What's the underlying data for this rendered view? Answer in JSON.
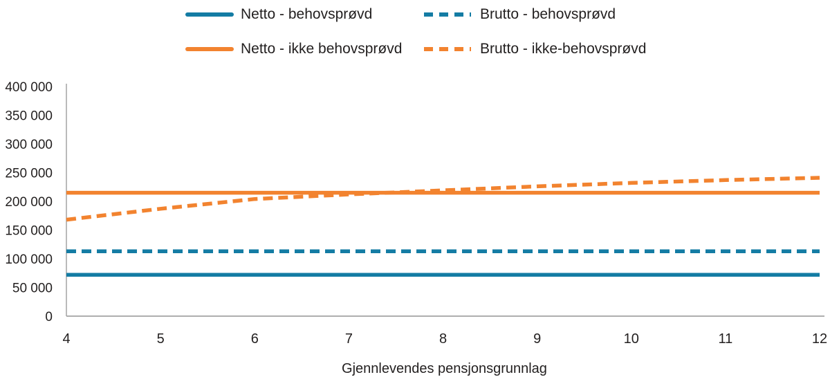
{
  "chart_data": {
    "type": "line",
    "title": "",
    "xlabel": "Gjennlevendes pensjonsgrunnlag",
    "ylabel": "",
    "xlim": [
      4,
      12
    ],
    "ylim": [
      0,
      400000
    ],
    "grid": false,
    "legend_position": "top",
    "axis_color": "#A3A3A3",
    "text_color": "#221F1F",
    "xticks": [
      4,
      5,
      6,
      7,
      8,
      9,
      10,
      11,
      12
    ],
    "ytick_values": [
      0,
      50000,
      100000,
      150000,
      200000,
      250000,
      300000,
      350000,
      400000
    ],
    "ytick_labels": [
      "0",
      "50 000",
      "100 000",
      "150 000",
      "200 000",
      "250 000",
      "300 000",
      "350 000",
      "400 000"
    ],
    "x": [
      4,
      5,
      6,
      7,
      8,
      9,
      10,
      11,
      12
    ],
    "series": [
      {
        "name": "Netto - behovsprøvd",
        "style": "solid",
        "color": "#147CA4",
        "values": [
          72000,
          72000,
          72000,
          72000,
          72000,
          72000,
          72000,
          72000,
          72000
        ]
      },
      {
        "name": "Brutto - behovsprøvd",
        "style": "dashed",
        "color": "#147CA4",
        "values": [
          113000,
          113000,
          113000,
          113000,
          113000,
          113000,
          113000,
          113000,
          113000
        ]
      },
      {
        "name": "Netto - ikke behovsprøvd",
        "style": "solid",
        "color": "#F2832F",
        "values": [
          215000,
          215000,
          215000,
          215000,
          215000,
          215000,
          215000,
          215000,
          215000
        ]
      },
      {
        "name": "Brutto - ikke-behovsprøvd",
        "style": "dashed",
        "color": "#F2832F",
        "values": [
          168000,
          187000,
          204000,
          212000,
          219000,
          226000,
          232000,
          237000,
          241000
        ]
      }
    ]
  }
}
